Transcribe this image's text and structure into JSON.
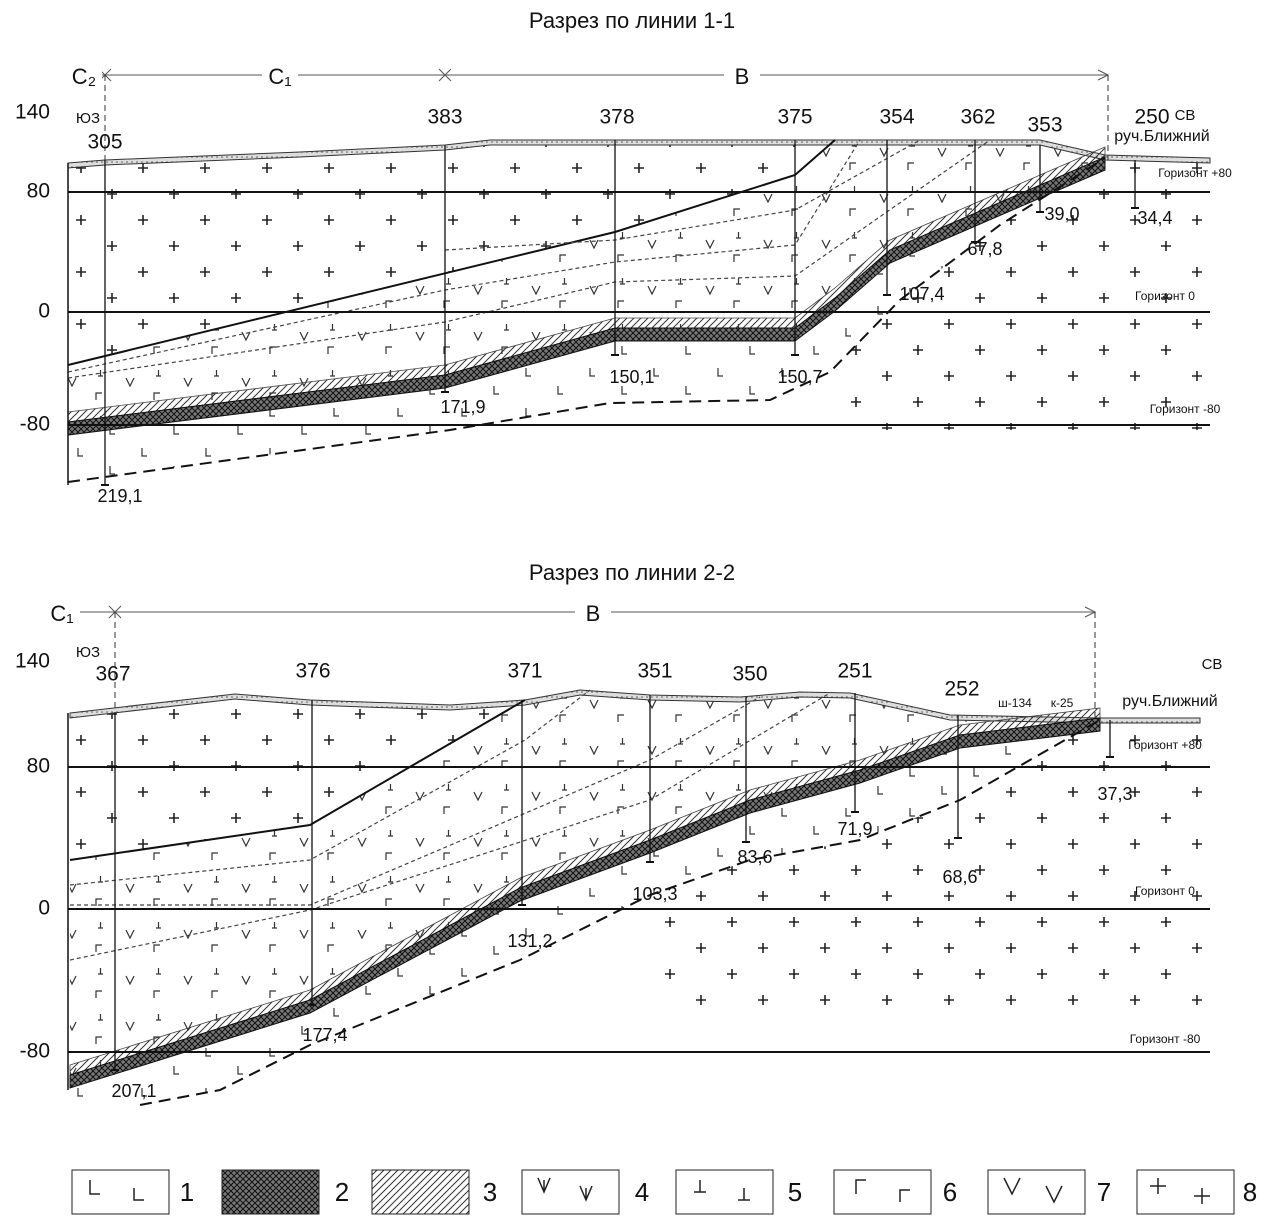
{
  "sections": [
    {
      "title": "Разрез по линии 1-1",
      "zones": [
        "C₂",
        "C₁",
        "В"
      ],
      "top_label": "140",
      "sw": "ЮЗ",
      "ne": "СВ",
      "horizons": [
        {
          "level": "80",
          "name": "Горизонт +80"
        },
        {
          "level": "0",
          "name": "Горизонт 0"
        },
        {
          "level": "-80",
          "name": "Горизонт -80"
        }
      ],
      "stream": "руч.Ближний",
      "workings": [],
      "wells": [
        {
          "number": "305",
          "depth": "219,1"
        },
        {
          "number": "383",
          "depth": "171,9"
        },
        {
          "number": "378",
          "depth": "150,1"
        },
        {
          "number": "375",
          "depth": "150,7"
        },
        {
          "number": "354",
          "depth": "107,4"
        },
        {
          "number": "362",
          "depth": "67,8"
        },
        {
          "number": "353",
          "depth": "39,0"
        },
        {
          "number": "250",
          "depth": "34,4"
        }
      ]
    },
    {
      "title": "Разрез по линии 2-2",
      "zones": [
        "C₁",
        "В"
      ],
      "top_label": "140",
      "sw": "ЮЗ",
      "ne": "СВ",
      "horizons": [
        {
          "level": "80",
          "name": "Горизонт +80"
        },
        {
          "level": "0",
          "name": "Горизонт 0"
        },
        {
          "level": "-80",
          "name": "Горизонт -80"
        }
      ],
      "stream": "руч.Ближний",
      "workings": [
        "ш-134",
        "к-25"
      ],
      "wells": [
        {
          "number": "367",
          "depth": "207,1"
        },
        {
          "number": "376",
          "depth": "177,4"
        },
        {
          "number": "371",
          "depth": "131,2"
        },
        {
          "number": "351",
          "depth": "103,3"
        },
        {
          "number": "350",
          "depth": "83,6"
        },
        {
          "number": "251",
          "depth": "71,9"
        },
        {
          "number": "252",
          "depth": "68,6"
        },
        {
          "number": null,
          "depth": "37,3"
        }
      ]
    }
  ],
  "legend": [
    "1",
    "2",
    "3",
    "4",
    "5",
    "6",
    "7",
    "8"
  ]
}
